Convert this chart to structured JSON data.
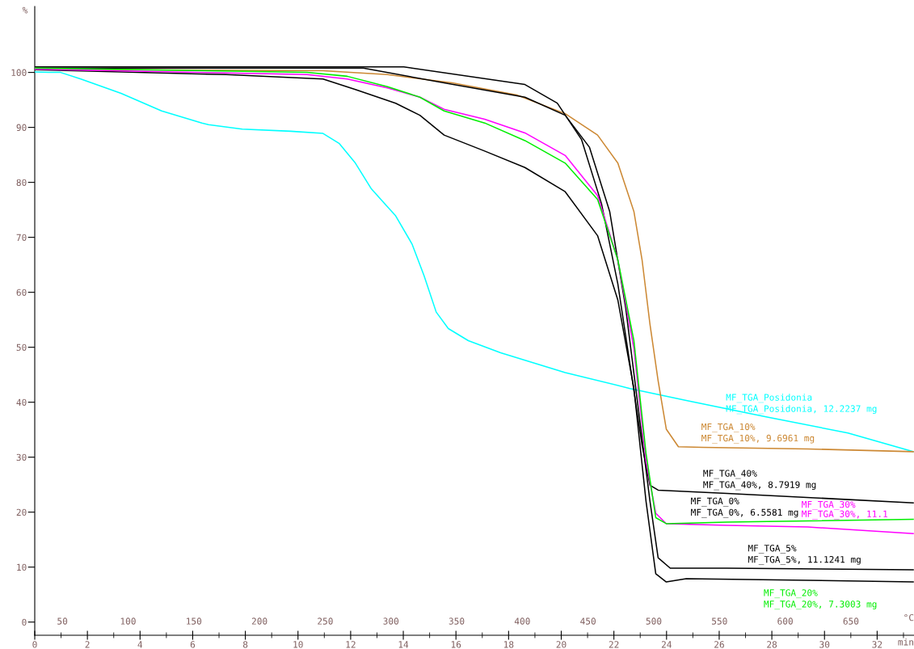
{
  "chart_data": {
    "type": "line",
    "xlabel": "min",
    "ylabel": "%",
    "x2label": "°C",
    "xlim": [
      0,
      33.4
    ],
    "xticks": [
      0,
      2,
      4,
      6,
      8,
      10,
      12,
      14,
      16,
      18,
      20,
      22,
      24,
      26,
      28,
      30,
      32
    ],
    "x2lim": [
      29,
      698
    ],
    "x2ticks": [
      50,
      100,
      150,
      200,
      250,
      300,
      350,
      400,
      450,
      500,
      550,
      600,
      650
    ],
    "ylim": [
      -2.4,
      112
    ],
    "yticks": [
      0,
      10,
      20,
      30,
      40,
      50,
      60,
      70,
      80,
      90,
      100
    ],
    "grid": false,
    "legend": false,
    "line_style": "solid",
    "marker": "none",
    "series": [
      {
        "color": "#00ffff",
        "x": [
          0,
          0.52,
          0.98,
          1.75,
          3.28,
          4.82,
          6.35,
          6.6,
          7.88,
          9.72,
          10.95,
          11.56,
          12.18,
          12.79,
          13.71,
          14.33,
          14.79,
          15.25,
          15.71,
          16.47,
          17.7,
          20.15,
          22.61,
          24.75,
          27.82,
          30.89,
          33.37
        ],
        "values": [
          100.1,
          100,
          100,
          98.8,
          96.2,
          93,
          90.8,
          90.5,
          89.7,
          89.3,
          88.9,
          87.1,
          83.5,
          78.8,
          73.9,
          68.8,
          63,
          56.4,
          53.4,
          51.2,
          49,
          45.4,
          42.5,
          40.3,
          37.3,
          34.4,
          31.0
        ]
      },
      {
        "color": "#cc8833",
        "x": [
          0,
          10.95,
          13.4,
          15.86,
          18.31,
          20.15,
          21.38,
          22.15,
          22.76,
          23.07,
          23.37,
          23.68,
          23.99,
          24.45,
          25.37,
          29.36,
          33.37
        ],
        "values": [
          100.6,
          100.3,
          99.6,
          98.1,
          95.9,
          92.5,
          88.6,
          83.5,
          74.7,
          65.9,
          54.2,
          43.9,
          35.1,
          31.9,
          31.8,
          31.5,
          31.0
        ]
      },
      {
        "color": "#000000",
        "x": [
          0,
          14.02,
          18.62,
          19.85,
          20.77,
          21.53,
          22.15,
          22.61,
          23.07,
          23.37,
          23.68,
          26.29,
          33.37
        ],
        "values": [
          101,
          101,
          97.8,
          94.4,
          87.8,
          76.1,
          61.5,
          46.9,
          32.2,
          24.9,
          24,
          23.4,
          21.7
        ]
      },
      {
        "color": "#000000",
        "x": [
          0,
          12.48,
          15.55,
          18.62,
          20.15,
          21.07,
          21.84,
          22.45,
          22.91,
          23.37,
          23.68,
          24.14,
          26.29,
          33.37
        ],
        "values": [
          100.8,
          100.8,
          98.1,
          95.5,
          92.2,
          86.4,
          74.7,
          57.1,
          39.5,
          22,
          11.7,
          9.8,
          9.8,
          9.5
        ]
      },
      {
        "color": "#000000",
        "x": [
          0,
          7.27,
          10.95,
          12.18,
          13.71,
          14.63,
          15.55,
          17.09,
          18.62,
          20.15,
          21.38,
          22.15,
          22.76,
          23.22,
          23.59,
          23.99,
          24.75,
          29.36,
          33.37
        ],
        "values": [
          100.5,
          99.6,
          98.8,
          96.9,
          94.4,
          92.2,
          88.6,
          85.7,
          82.7,
          78.3,
          70.3,
          58.6,
          42.5,
          22,
          8.8,
          7.3,
          7.9,
          7.6,
          7.3
        ]
      },
      {
        "color": "#ff00ff",
        "x": [
          0,
          10.34,
          11.87,
          13.4,
          14.63,
          15.55,
          17.09,
          18.62,
          20.15,
          21.38,
          22.15,
          22.76,
          23.22,
          23.59,
          23.99,
          26.29,
          29.36,
          33.37
        ],
        "values": [
          100.6,
          99.6,
          98.8,
          97.2,
          95.5,
          93.3,
          91.5,
          89,
          84.9,
          77.6,
          65.9,
          49.8,
          29.3,
          19.8,
          17.9,
          17.6,
          17.3,
          16.1
        ]
      },
      {
        "color": "#00ee00",
        "x": [
          0,
          10.34,
          11.87,
          13.4,
          14.63,
          15.55,
          17.09,
          18.62,
          20.15,
          21.38,
          22.15,
          22.76,
          23.22,
          23.59,
          23.99,
          26.29,
          33.37
        ],
        "values": [
          100.8,
          100,
          99.3,
          97.4,
          95.5,
          93,
          90.8,
          87.6,
          83.5,
          76.9,
          65.9,
          51.2,
          30.7,
          19,
          17.9,
          18.2,
          18.7
        ]
      }
    ],
    "annotations": [
      "MF_TGA_Posidonia",
      "MF_TGA_Posidonia, 12.2237 mg",
      "MF_TGA_10%",
      "MF_TGA_10%, 9.6961 mg",
      "MF_TGA_40%",
      "MF_TGA_40%, 8.7919 mg",
      "MF_TGA_5%",
      "MF_TGA_5%, 11.1241 mg",
      "MF_TGA_0%",
      "MF_TGA_0%, 6.5581 mg",
      "MF_TGA_30%",
      "MF_TGA_30%, 11.1",
      "MF_TGA_20%",
      "MF_TGA_20%, 7.3003 mg"
    ]
  }
}
